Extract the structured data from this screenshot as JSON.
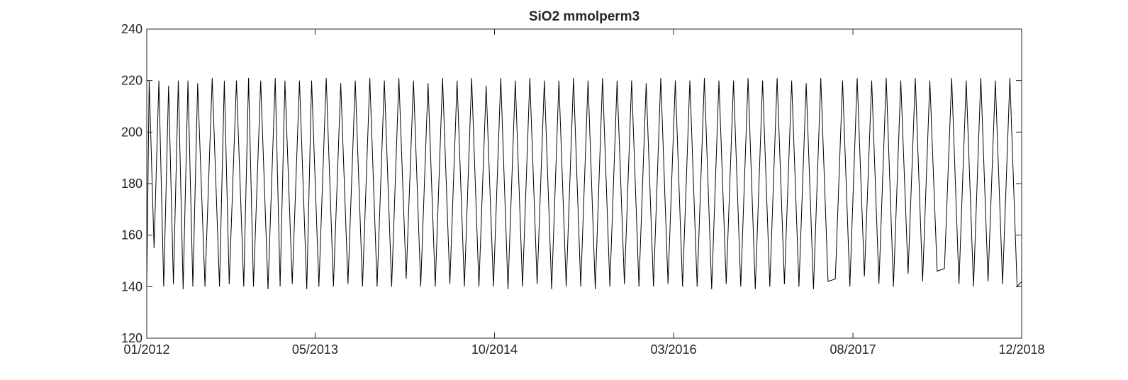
{
  "chart_data": {
    "type": "line",
    "title": "SiO2 mmolperm3",
    "xlabel": "",
    "ylabel": "",
    "ylim": [
      120,
      240
    ],
    "yticks": [
      120,
      140,
      160,
      180,
      200,
      220,
      240
    ],
    "xlim": [
      "2012-01",
      "2018-12"
    ],
    "xticks": [
      {
        "date": "2012-01",
        "label": "01/2012"
      },
      {
        "date": "2013-05",
        "label": "05/2013"
      },
      {
        "date": "2014-10",
        "label": "10/2014"
      },
      {
        "date": "2016-03",
        "label": "03/2016"
      },
      {
        "date": "2017-08",
        "label": "08/2017"
      },
      {
        "date": "2018-12",
        "label": "12/2018"
      }
    ],
    "grid": false,
    "line_color": "#000000",
    "series": [
      {
        "x": [
          "2012-01-01",
          "2012-01-08",
          "2012-01-22",
          "2012-02-05",
          "2012-02-19",
          "2012-03-04",
          "2012-03-18",
          "2012-04-01",
          "2012-04-15",
          "2012-04-29",
          "2012-05-13",
          "2012-05-27",
          "2012-06-17",
          "2012-07-08",
          "2012-07-29",
          "2012-08-12",
          "2012-08-26",
          "2012-09-16",
          "2012-10-07",
          "2012-10-21",
          "2012-11-04",
          "2012-11-25",
          "2012-12-16",
          "2013-01-06",
          "2013-01-20",
          "2013-02-03",
          "2013-02-24",
          "2013-03-17",
          "2013-04-07",
          "2013-04-21",
          "2013-05-12",
          "2013-06-02",
          "2013-06-23",
          "2013-07-14",
          "2013-08-04",
          "2013-08-25",
          "2013-09-15",
          "2013-10-06",
          "2013-10-27",
          "2013-11-17",
          "2013-12-08",
          "2013-12-29",
          "2014-01-19",
          "2014-02-09",
          "2014-03-02",
          "2014-03-23",
          "2014-04-13",
          "2014-05-04",
          "2014-05-25",
          "2014-06-15",
          "2014-07-06",
          "2014-07-27",
          "2014-08-17",
          "2014-09-07",
          "2014-09-28",
          "2014-10-19",
          "2014-11-09",
          "2014-11-30",
          "2014-12-21",
          "2015-01-11",
          "2015-02-01",
          "2015-02-22",
          "2015-03-15",
          "2015-04-05",
          "2015-04-26",
          "2015-05-17",
          "2015-06-07",
          "2015-06-28",
          "2015-07-19",
          "2015-08-09",
          "2015-08-30",
          "2015-09-20",
          "2015-10-11",
          "2015-11-01",
          "2015-11-22",
          "2015-12-13",
          "2016-01-03",
          "2016-01-24",
          "2016-02-14",
          "2016-03-06",
          "2016-03-27",
          "2016-04-17",
          "2016-05-08",
          "2016-05-29",
          "2016-06-19",
          "2016-07-10",
          "2016-07-31",
          "2016-08-21",
          "2016-09-11",
          "2016-10-02",
          "2016-10-23",
          "2016-11-13",
          "2016-12-04",
          "2016-12-25",
          "2017-01-15",
          "2017-02-05",
          "2017-02-26",
          "2017-03-19",
          "2017-04-09",
          "2017-04-30",
          "2017-05-21",
          "2017-06-11",
          "2017-07-02",
          "2017-07-23",
          "2017-08-13",
          "2017-09-03",
          "2017-09-24",
          "2017-10-15",
          "2017-11-05",
          "2017-11-26",
          "2017-12-17",
          "2018-01-07",
          "2018-01-28",
          "2018-02-18",
          "2018-03-11",
          "2018-04-01",
          "2018-04-22",
          "2018-05-13",
          "2018-06-03",
          "2018-06-24",
          "2018-07-15",
          "2018-08-05",
          "2018-08-26",
          "2018-09-16",
          "2018-10-07",
          "2018-10-28",
          "2018-11-18",
          "2018-12-01"
        ],
        "y": [
          140,
          220,
          155,
          220,
          140,
          218,
          141,
          220,
          139,
          220,
          140,
          219,
          140,
          221,
          140,
          220,
          141,
          220,
          140,
          221,
          140,
          220,
          139,
          221,
          140,
          220,
          141,
          220,
          139,
          220,
          140,
          221,
          140,
          219,
          141,
          220,
          140,
          221,
          140,
          220,
          140,
          221,
          143,
          220,
          140,
          219,
          140,
          221,
          141,
          220,
          140,
          221,
          140,
          218,
          140,
          221,
          139,
          220,
          140,
          221,
          141,
          220,
          139,
          220,
          140,
          221,
          140,
          220,
          139,
          221,
          140,
          220,
          141,
          220,
          140,
          219,
          140,
          221,
          141,
          220,
          140,
          220,
          140,
          221,
          139,
          220,
          141,
          220,
          140,
          221,
          139,
          220,
          140,
          221,
          141,
          220,
          140,
          219,
          139,
          221,
          142,
          143,
          220,
          140,
          221,
          144,
          220,
          141,
          221,
          140,
          220,
          145,
          221,
          142,
          220,
          146,
          147,
          221,
          141,
          220,
          140,
          221,
          142,
          220,
          141,
          221,
          140,
          142
        ]
      }
    ]
  }
}
